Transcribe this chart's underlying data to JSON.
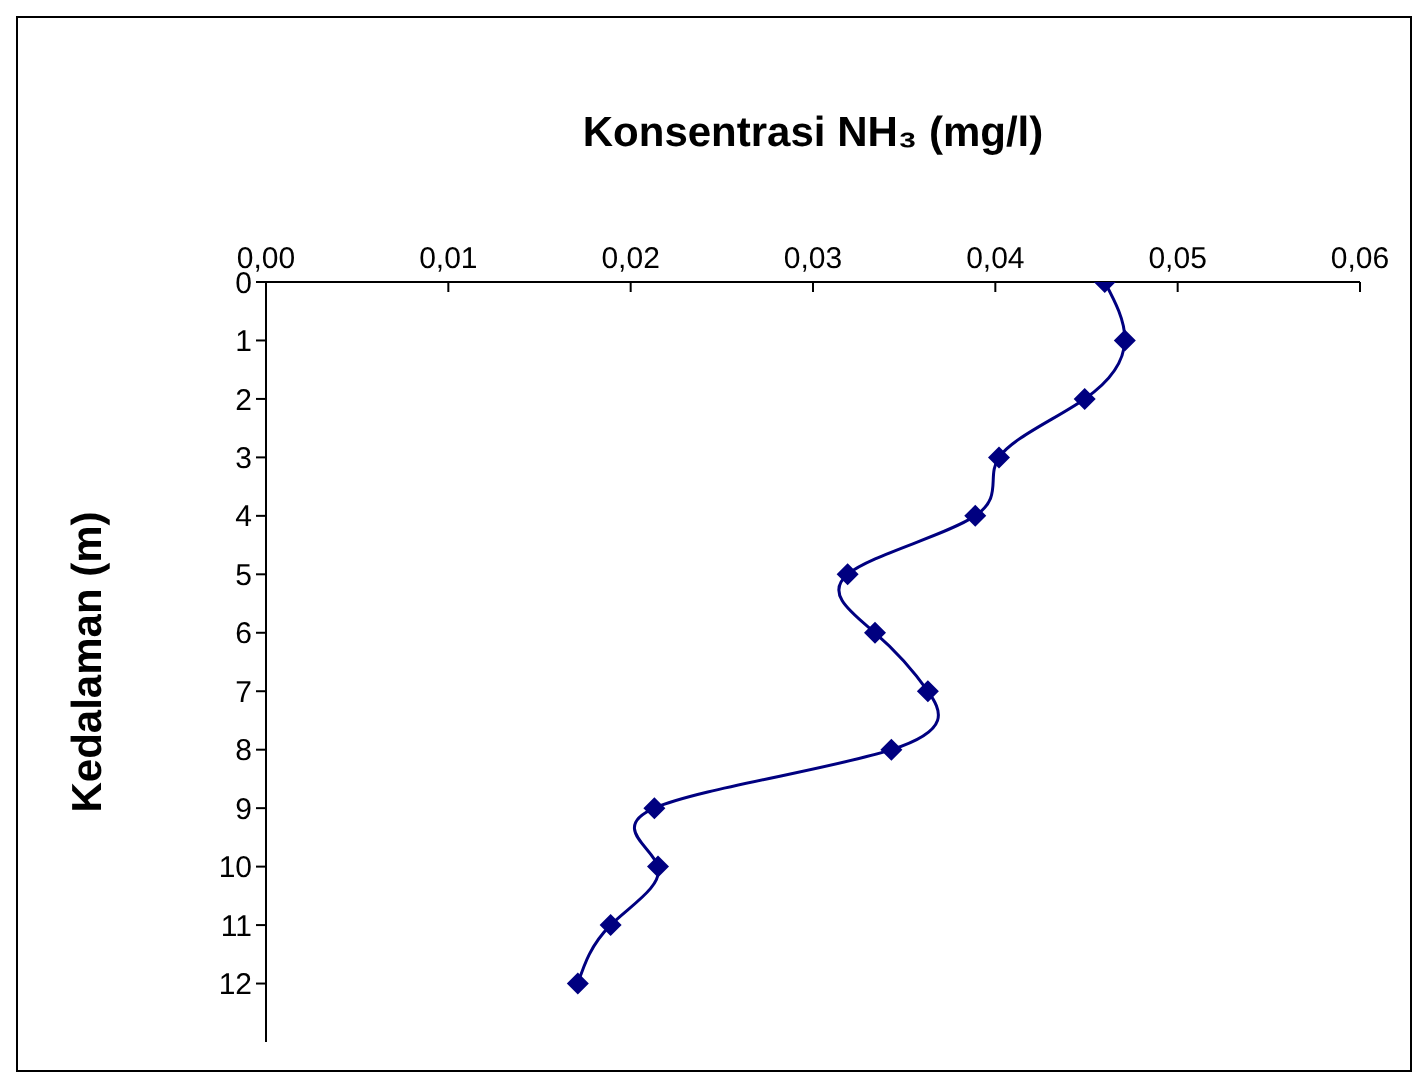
{
  "chart_data": {
    "type": "line",
    "title": "Konsentrasi NH₃ (mg/l)",
    "ylabel": "Kedalaman (m)",
    "x": [
      0.046,
      0.0471,
      0.0449,
      0.0402,
      0.0389,
      0.0319,
      0.0334,
      0.0363,
      0.0343,
      0.0213,
      0.0215,
      0.0189,
      0.0171
    ],
    "series": [
      {
        "color": "#000080",
        "values": [
          0,
          1,
          2,
          3,
          4,
          5,
          6,
          7,
          8,
          9,
          10,
          11,
          12
        ]
      }
    ],
    "xlim": [
      0,
      0.06
    ],
    "xticks": [
      {
        "value": 0,
        "label": "0,00"
      },
      {
        "value": 0.01,
        "label": "0,01"
      },
      {
        "value": 0.02,
        "label": "0,02"
      },
      {
        "value": 0.03,
        "label": "0,03"
      },
      {
        "value": 0.04,
        "label": "0,04"
      },
      {
        "value": 0.05,
        "label": "0,05"
      },
      {
        "value": 0.06,
        "label": "0,06"
      }
    ],
    "ylim": [
      13,
      0
    ],
    "yticks": [
      0,
      1,
      2,
      3,
      4,
      5,
      6,
      7,
      8,
      9,
      10,
      11,
      12
    ],
    "grid": false,
    "legend": false,
    "marker": "diamond",
    "line_style": "solid"
  }
}
